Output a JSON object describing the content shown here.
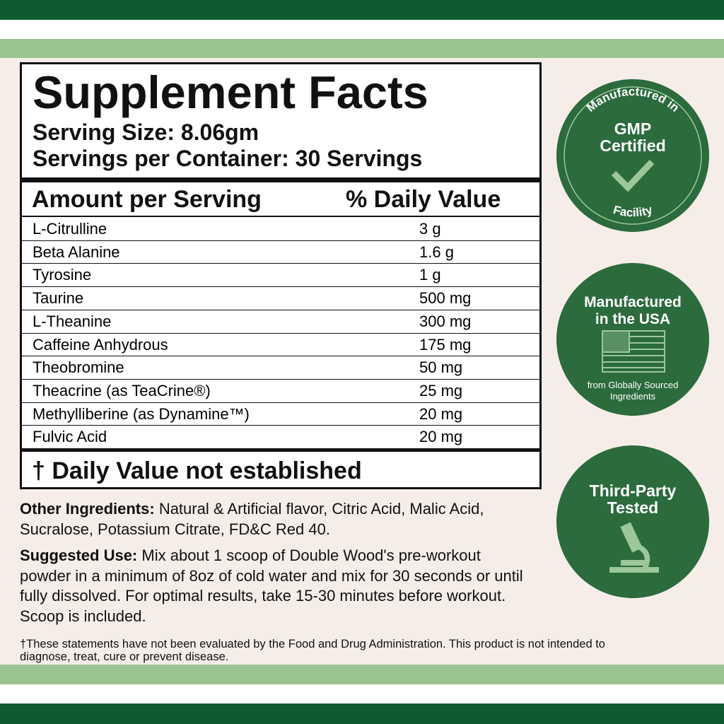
{
  "header": {
    "title": "Supplement Facts",
    "serving_size": "Serving Size: 8.06gm",
    "servings_per_container": "Servings per Container: 30 Servings"
  },
  "table": {
    "columns": [
      "Amount per Serving",
      "% Daily Value"
    ],
    "rows": [
      [
        "L-Citrulline",
        "3 g"
      ],
      [
        "Beta Alanine",
        "1.6 g"
      ],
      [
        "Tyrosine",
        "1 g"
      ],
      [
        "Taurine",
        "500 mg"
      ],
      [
        "L-Theanine",
        "300 mg"
      ],
      [
        "Caffeine Anhydrous",
        "175 mg"
      ],
      [
        "Theobromine",
        "50 mg"
      ],
      [
        "Theacrine (as TeaCrine®)",
        "25 mg"
      ],
      [
        "Methylliberine (as Dynamine™)",
        "20 mg"
      ],
      [
        "Fulvic Acid",
        "20 mg"
      ]
    ],
    "footnote": "† Daily Value not established"
  },
  "other_ingredients": {
    "label": "Other Ingredients:",
    "text": "Natural & Artificial flavor, Citric Acid, Malic Acid, Sucralose, Potassium Citrate, FD&C Red 40."
  },
  "suggested_use": {
    "label": "Suggested Use:",
    "text": "Mix about 1 scoop of Double Wood's pre-workout powder in a minimum of 8oz of cold water and mix for 30 seconds or until fully dissolved. For optimal results, take 15-30 minutes before workout. Scoop is included."
  },
  "disclaimer": "†These statements have not been evaluated by the Food and Drug Administration. This product is not intended to diagnose, treat, cure or prevent disease.",
  "badges": [
    {
      "top": "Manufactured in",
      "main": [
        "GMP",
        "Certified"
      ],
      "bottom": "Facility"
    },
    {
      "main": [
        "Manufactured",
        "in the USA"
      ],
      "sub": [
        "from Globally Sourced",
        "Ingredients"
      ]
    },
    {
      "main": [
        "Third-Party",
        "Tested"
      ]
    }
  ]
}
